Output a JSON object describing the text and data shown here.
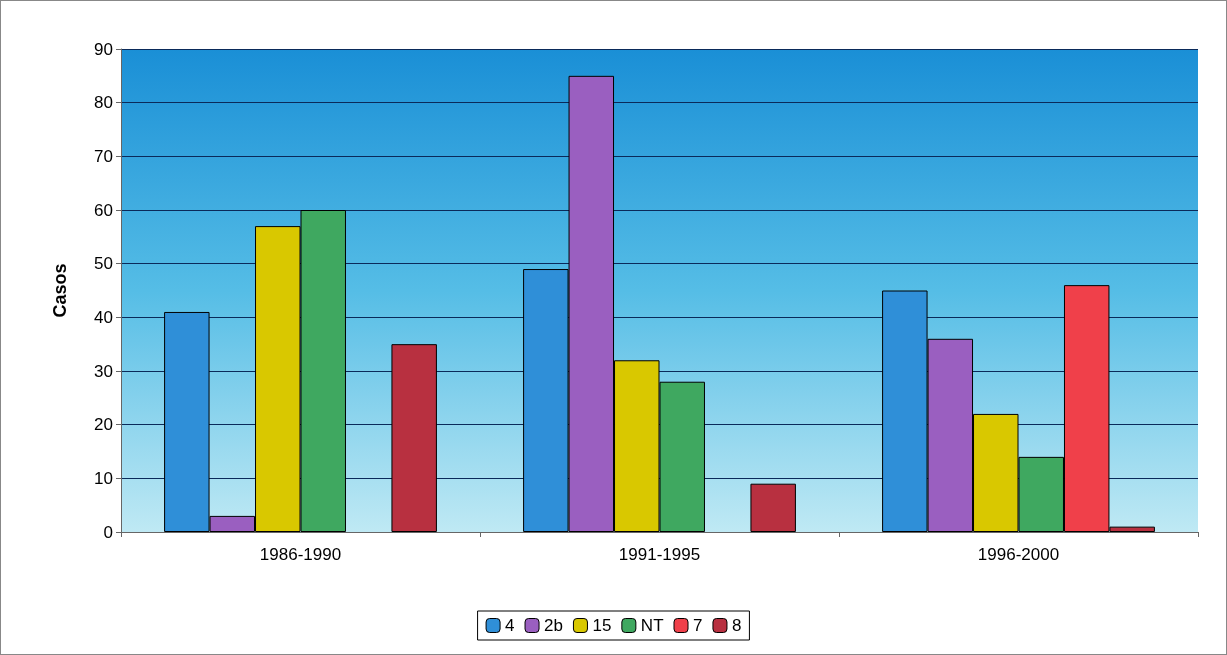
{
  "chart_data": {
    "type": "bar",
    "ylabel": "Casos",
    "categories": [
      "1986-1990",
      "1991-1995",
      "1996-2000"
    ],
    "series": [
      {
        "name": "4",
        "color": "#2f8fd8",
        "values": [
          41,
          49,
          45
        ]
      },
      {
        "name": "2b",
        "color": "#9a5fc0",
        "values": [
          3,
          85,
          36
        ]
      },
      {
        "name": "15",
        "color": "#d9c800",
        "values": [
          57,
          32,
          22
        ]
      },
      {
        "name": "NT",
        "color": "#3fa860",
        "values": [
          60,
          28,
          14
        ]
      },
      {
        "name": "7",
        "color": "#f0404a",
        "values": [
          null,
          null,
          46
        ]
      },
      {
        "name": "8",
        "color": "#b83040",
        "values": [
          35,
          9,
          1
        ]
      }
    ],
    "ylim": [
      0,
      90
    ],
    "yticks": [
      0,
      10,
      20,
      30,
      40,
      50,
      60,
      70,
      80,
      90
    ],
    "grid": "y",
    "legend": "bottom"
  }
}
